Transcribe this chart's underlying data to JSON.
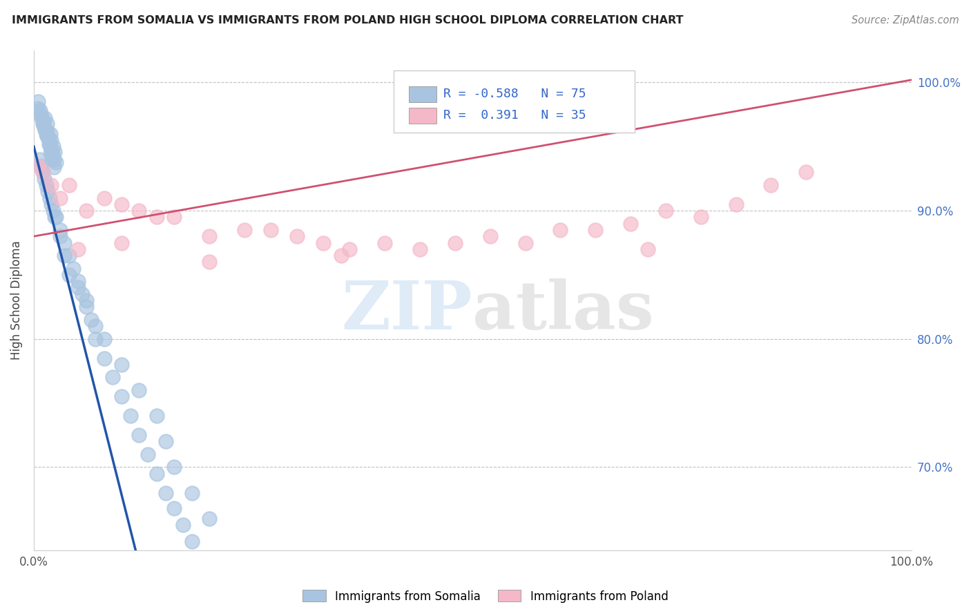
{
  "title": "IMMIGRANTS FROM SOMALIA VS IMMIGRANTS FROM POLAND HIGH SCHOOL DIPLOMA CORRELATION CHART",
  "source": "Source: ZipAtlas.com",
  "ylabel": "High School Diploma",
  "legend_somalia": "Immigrants from Somalia",
  "legend_poland": "Immigrants from Poland",
  "R_somalia": -0.588,
  "N_somalia": 75,
  "R_poland": 0.391,
  "N_poland": 35,
  "color_somalia": "#a8c4e0",
  "color_poland": "#f4b8c8",
  "line_somalia": "#2255aa",
  "line_poland": "#d05070",
  "ytick_labels": [
    "70.0%",
    "80.0%",
    "90.0%",
    "100.0%"
  ],
  "ytick_values": [
    0.7,
    0.8,
    0.9,
    1.0
  ],
  "xlim": [
    0.0,
    1.0
  ],
  "ylim": [
    0.635,
    1.025
  ],
  "somalia_x": [
    0.005,
    0.008,
    0.01,
    0.01,
    0.012,
    0.013,
    0.014,
    0.015,
    0.015,
    0.016,
    0.017,
    0.018,
    0.019,
    0.02,
    0.02,
    0.021,
    0.022,
    0.023,
    0.024,
    0.025,
    0.005,
    0.007,
    0.009,
    0.011,
    0.013,
    0.015,
    0.017,
    0.019,
    0.021,
    0.023,
    0.006,
    0.008,
    0.01,
    0.012,
    0.014,
    0.016,
    0.018,
    0.02,
    0.022,
    0.024,
    0.03,
    0.035,
    0.04,
    0.045,
    0.05,
    0.055,
    0.06,
    0.065,
    0.07,
    0.08,
    0.09,
    0.1,
    0.11,
    0.12,
    0.13,
    0.14,
    0.15,
    0.16,
    0.17,
    0.18,
    0.025,
    0.03,
    0.035,
    0.04,
    0.05,
    0.06,
    0.07,
    0.08,
    0.1,
    0.12,
    0.14,
    0.15,
    0.16,
    0.18,
    0.2
  ],
  "somalia_y": [
    0.98,
    0.975,
    0.97,
    0.968,
    0.965,
    0.972,
    0.96,
    0.968,
    0.962,
    0.958,
    0.955,
    0.952,
    0.96,
    0.948,
    0.955,
    0.944,
    0.95,
    0.94,
    0.946,
    0.938,
    0.985,
    0.978,
    0.973,
    0.968,
    0.963,
    0.958,
    0.952,
    0.945,
    0.94,
    0.934,
    0.94,
    0.935,
    0.93,
    0.925,
    0.92,
    0.915,
    0.91,
    0.905,
    0.9,
    0.895,
    0.885,
    0.875,
    0.865,
    0.855,
    0.845,
    0.835,
    0.825,
    0.815,
    0.8,
    0.785,
    0.77,
    0.755,
    0.74,
    0.725,
    0.71,
    0.695,
    0.68,
    0.668,
    0.655,
    0.642,
    0.895,
    0.88,
    0.865,
    0.85,
    0.84,
    0.83,
    0.81,
    0.8,
    0.78,
    0.76,
    0.74,
    0.72,
    0.7,
    0.68,
    0.66
  ],
  "poland_x": [
    0.005,
    0.01,
    0.02,
    0.03,
    0.04,
    0.06,
    0.08,
    0.1,
    0.12,
    0.14,
    0.16,
    0.2,
    0.24,
    0.27,
    0.3,
    0.33,
    0.36,
    0.4,
    0.44,
    0.48,
    0.52,
    0.56,
    0.6,
    0.64,
    0.68,
    0.72,
    0.76,
    0.8,
    0.84,
    0.88,
    0.05,
    0.1,
    0.2,
    0.35,
    0.7
  ],
  "poland_y": [
    0.935,
    0.93,
    0.92,
    0.91,
    0.92,
    0.9,
    0.91,
    0.905,
    0.9,
    0.895,
    0.895,
    0.88,
    0.885,
    0.885,
    0.88,
    0.875,
    0.87,
    0.875,
    0.87,
    0.875,
    0.88,
    0.875,
    0.885,
    0.885,
    0.89,
    0.9,
    0.895,
    0.905,
    0.92,
    0.93,
    0.87,
    0.875,
    0.86,
    0.865,
    0.87
  ]
}
